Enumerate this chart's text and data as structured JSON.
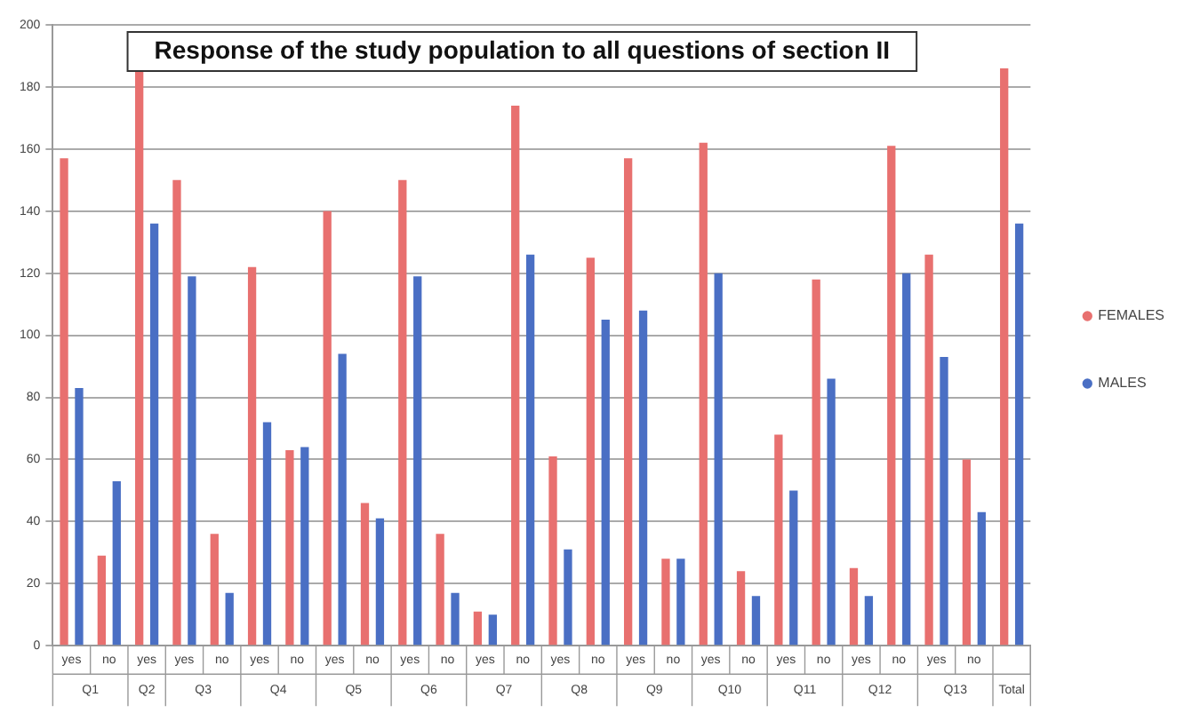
{
  "chart_data": {
    "type": "bar",
    "title": "Response of the study population to all questions of section II",
    "categories": [
      "yes",
      "no",
      "yes",
      "yes",
      "no",
      "yes",
      "no",
      "yes",
      "no",
      "yes",
      "no",
      "yes",
      "no",
      "yes",
      "no",
      "yes",
      "no",
      "yes",
      "no",
      "yes",
      "no",
      "yes",
      "no",
      "yes",
      "no",
      null
    ],
    "annotations": [
      "Q1",
      "Q2",
      "Q3",
      "Q4",
      "Q5",
      "Q6",
      "Q7",
      "Q8",
      "Q9",
      "Q10",
      "Q11",
      "Q12",
      "Q13",
      "Total"
    ],
    "series": [
      {
        "name": "FEMALES",
        "color": "#e8706f",
        "values": [
          157,
          29,
          186,
          150,
          36,
          122,
          63,
          140,
          46,
          150,
          36,
          11,
          174,
          61,
          125,
          157,
          28,
          162,
          24,
          68,
          118,
          25,
          161,
          126,
          60,
          186
        ]
      },
      {
        "name": "MALES",
        "color": "#4a6fc4",
        "values": [
          83,
          53,
          136,
          119,
          17,
          72,
          64,
          94,
          41,
          119,
          17,
          10,
          126,
          31,
          105,
          108,
          28,
          120,
          16,
          50,
          86,
          16,
          120,
          93,
          43,
          136
        ]
      }
    ],
    "ylim": [
      0,
      200
    ],
    "yticks": [
      0,
      20,
      40,
      60,
      80,
      100,
      120,
      140,
      160,
      180,
      200
    ],
    "grid": "y",
    "legend": "right"
  }
}
